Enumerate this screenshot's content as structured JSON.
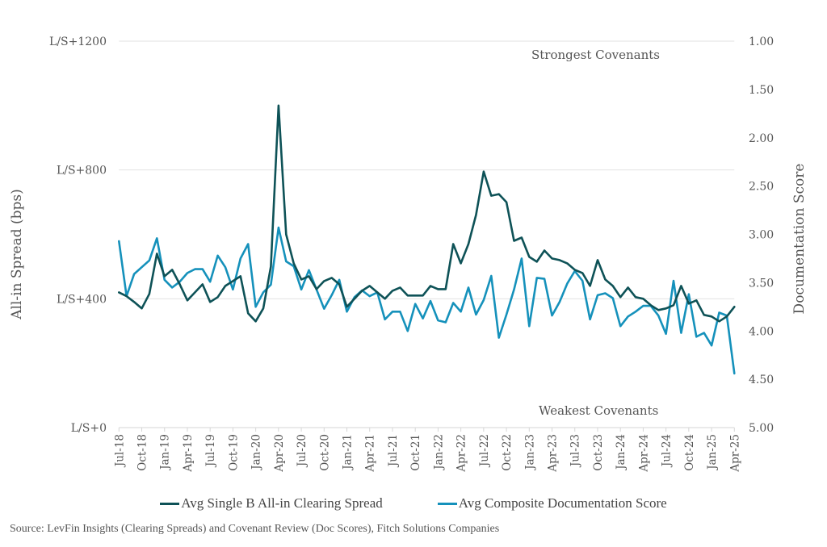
{
  "chart_data": {
    "type": "line",
    "title": "",
    "x": [
      "Jul-18",
      "Aug-18",
      "Sep-18",
      "Oct-18",
      "Nov-18",
      "Dec-18",
      "Jan-19",
      "Feb-19",
      "Mar-19",
      "Apr-19",
      "May-19",
      "Jun-19",
      "Jul-19",
      "Aug-19",
      "Sep-19",
      "Oct-19",
      "Nov-19",
      "Dec-19",
      "Jan-20",
      "Feb-20",
      "Mar-20",
      "Apr-20",
      "May-20",
      "Jun-20",
      "Jul-20",
      "Aug-20",
      "Sep-20",
      "Oct-20",
      "Nov-20",
      "Dec-20",
      "Jan-21",
      "Feb-21",
      "Mar-21",
      "Apr-21",
      "May-21",
      "Jun-21",
      "Jul-21",
      "Aug-21",
      "Sep-21",
      "Oct-21",
      "Nov-21",
      "Dec-21",
      "Jan-22",
      "Feb-22",
      "Mar-22",
      "Apr-22",
      "May-22",
      "Jun-22",
      "Jul-22",
      "Aug-22",
      "Sep-22",
      "Oct-22",
      "Nov-22",
      "Dec-22",
      "Jan-23",
      "Feb-23",
      "Mar-23",
      "Apr-23",
      "May-23",
      "Jun-23",
      "Jul-23",
      "Aug-23",
      "Sep-23",
      "Oct-23",
      "Nov-23",
      "Dec-23",
      "Jan-24",
      "Feb-24",
      "Mar-24",
      "Apr-24",
      "May-24",
      "Jun-24",
      "Jul-24",
      "Aug-24",
      "Sep-24",
      "Oct-24",
      "Nov-24",
      "Dec-24",
      "Jan-25",
      "Feb-25",
      "Mar-25",
      "Apr-25"
    ],
    "x_tick_labels": [
      "Jul-18",
      "Oct-18",
      "Jan-19",
      "Apr-19",
      "Jul-19",
      "Oct-19",
      "Jan-20",
      "Apr-20",
      "Jul-20",
      "Oct-20",
      "Jan-21",
      "Apr-21",
      "Jul-21",
      "Oct-21",
      "Jan-22",
      "Apr-22",
      "Jul-22",
      "Oct-22",
      "Jan-23",
      "Apr-23",
      "Jul-23",
      "Oct-23",
      "Jan-24",
      "Apr-24",
      "Jul-24",
      "Oct-24",
      "Jan-25",
      "Apr-25"
    ],
    "series": [
      {
        "name": "Avg Single B All-in Clearing Spread",
        "axis": "left",
        "color": "#0e5257",
        "values": [
          420,
          408,
          390,
          370,
          415,
          540,
          470,
          490,
          445,
          395,
          420,
          445,
          390,
          405,
          440,
          455,
          470,
          355,
          330,
          370,
          500,
          1000,
          600,
          510,
          460,
          470,
          430,
          455,
          465,
          445,
          375,
          400,
          425,
          440,
          420,
          400,
          425,
          435,
          410,
          410,
          410,
          440,
          430,
          430,
          570,
          510,
          570,
          660,
          795,
          720,
          725,
          700,
          580,
          590,
          530,
          515,
          550,
          525,
          520,
          510,
          490,
          480,
          440,
          520,
          460,
          440,
          405,
          435,
          405,
          400,
          380,
          365,
          370,
          380,
          440,
          385,
          395,
          350,
          345,
          330,
          345,
          375
        ]
      },
      {
        "name": "Avg Composite Documentation Score",
        "axis": "right",
        "color": "#1591bb",
        "values": [
          3.07,
          3.64,
          3.41,
          3.34,
          3.27,
          3.04,
          3.47,
          3.55,
          3.49,
          3.4,
          3.36,
          3.36,
          3.49,
          3.22,
          3.34,
          3.57,
          3.25,
          3.1,
          3.75,
          3.6,
          3.52,
          2.93,
          3.28,
          3.33,
          3.57,
          3.37,
          3.57,
          3.77,
          3.63,
          3.47,
          3.8,
          3.65,
          3.58,
          3.64,
          3.6,
          3.88,
          3.8,
          3.8,
          4.0,
          3.72,
          3.87,
          3.69,
          3.89,
          3.91,
          3.71,
          3.8,
          3.55,
          3.83,
          3.68,
          3.43,
          4.07,
          3.83,
          3.57,
          3.25,
          3.95,
          3.45,
          3.46,
          3.84,
          3.7,
          3.51,
          3.38,
          3.48,
          3.88,
          3.63,
          3.61,
          3.66,
          3.95,
          3.85,
          3.8,
          3.74,
          3.74,
          3.84,
          4.03,
          3.48,
          4.02,
          3.62,
          4.06,
          4.02,
          4.15,
          3.81,
          3.84,
          4.44
        ]
      }
    ],
    "left_axis": {
      "label": "All-in Spread (bps)",
      "range": [
        0,
        1200
      ],
      "ticks": [
        0,
        400,
        800,
        1200
      ],
      "tick_labels": [
        "L/S+0",
        "L/S+400",
        "L/S+800",
        "L/S+1200"
      ]
    },
    "right_axis": {
      "label": "Documentation Score",
      "range": [
        1.0,
        5.0
      ],
      "inverted": true,
      "ticks": [
        1.0,
        1.5,
        2.0,
        2.5,
        3.0,
        3.5,
        4.0,
        4.5,
        5.0
      ],
      "tick_labels": [
        "1.00",
        "1.50",
        "2.00",
        "2.50",
        "3.00",
        "3.50",
        "4.00",
        "4.50",
        "5.00"
      ]
    },
    "grid": true,
    "legend_position": "bottom",
    "annotations": {
      "top": "Strongest Covenants",
      "bottom": "Weakest Covenants"
    }
  },
  "legend": {
    "items": [
      {
        "label": "Avg Single B All-in Clearing Spread",
        "color": "#0e5257"
      },
      {
        "label": "Avg Composite Documentation Score",
        "color": "#1591bb"
      }
    ]
  },
  "source": "Source: LevFin Insights (Clearing Spreads) and Covenant Review (Doc Scores), Fitch Solutions Companies"
}
